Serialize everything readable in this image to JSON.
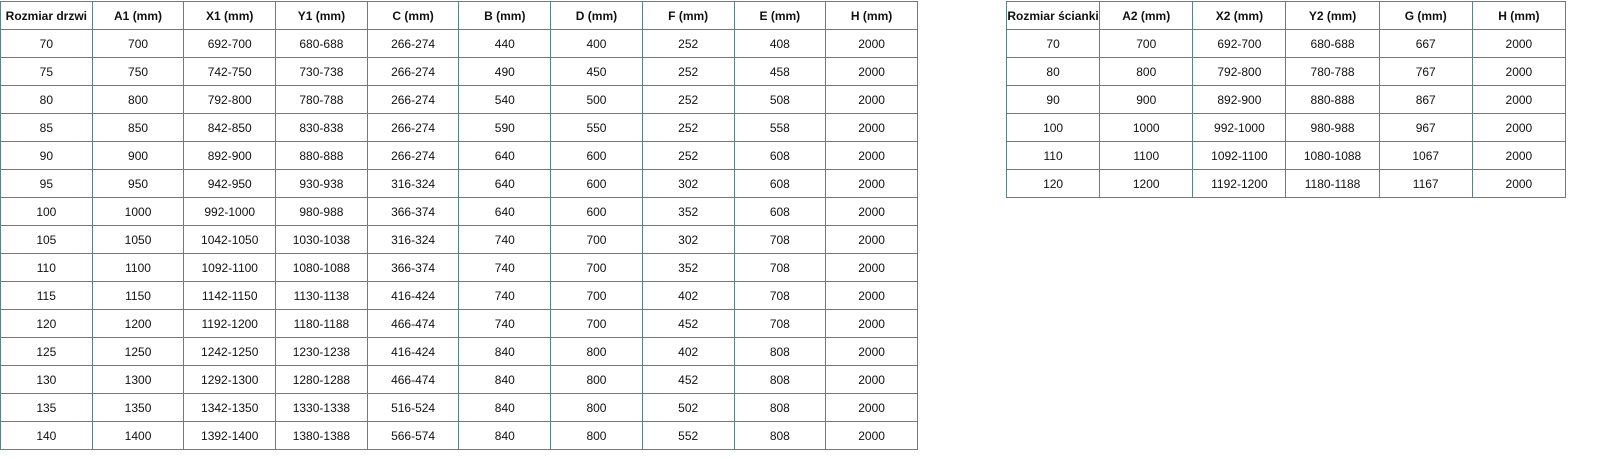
{
  "doors_table": {
    "headers": [
      "Rozmiar drzwi",
      "A1 (mm)",
      "X1 (mm)",
      "Y1 (mm)",
      "C (mm)",
      "B (mm)",
      "D (mm)",
      "F (mm)",
      "E (mm)",
      "H (mm)"
    ],
    "rows": [
      [
        "70",
        "700",
        "692-700",
        "680-688",
        "266-274",
        "440",
        "400",
        "252",
        "408",
        "2000"
      ],
      [
        "75",
        "750",
        "742-750",
        "730-738",
        "266-274",
        "490",
        "450",
        "252",
        "458",
        "2000"
      ],
      [
        "80",
        "800",
        "792-800",
        "780-788",
        "266-274",
        "540",
        "500",
        "252",
        "508",
        "2000"
      ],
      [
        "85",
        "850",
        "842-850",
        "830-838",
        "266-274",
        "590",
        "550",
        "252",
        "558",
        "2000"
      ],
      [
        "90",
        "900",
        "892-900",
        "880-888",
        "266-274",
        "640",
        "600",
        "252",
        "608",
        "2000"
      ],
      [
        "95",
        "950",
        "942-950",
        "930-938",
        "316-324",
        "640",
        "600",
        "302",
        "608",
        "2000"
      ],
      [
        "100",
        "1000",
        "992-1000",
        "980-988",
        "366-374",
        "640",
        "600",
        "352",
        "608",
        "2000"
      ],
      [
        "105",
        "1050",
        "1042-1050",
        "1030-1038",
        "316-324",
        "740",
        "700",
        "302",
        "708",
        "2000"
      ],
      [
        "110",
        "1100",
        "1092-1100",
        "1080-1088",
        "366-374",
        "740",
        "700",
        "352",
        "708",
        "2000"
      ],
      [
        "115",
        "1150",
        "1142-1150",
        "1130-1138",
        "416-424",
        "740",
        "700",
        "402",
        "708",
        "2000"
      ],
      [
        "120",
        "1200",
        "1192-1200",
        "1180-1188",
        "466-474",
        "740",
        "700",
        "452",
        "708",
        "2000"
      ],
      [
        "125",
        "1250",
        "1242-1250",
        "1230-1238",
        "416-424",
        "840",
        "800",
        "402",
        "808",
        "2000"
      ],
      [
        "130",
        "1300",
        "1292-1300",
        "1280-1288",
        "466-474",
        "840",
        "800",
        "452",
        "808",
        "2000"
      ],
      [
        "135",
        "1350",
        "1342-1350",
        "1330-1338",
        "516-524",
        "840",
        "800",
        "502",
        "808",
        "2000"
      ],
      [
        "140",
        "1400",
        "1392-1400",
        "1380-1388",
        "566-574",
        "840",
        "800",
        "552",
        "808",
        "2000"
      ]
    ]
  },
  "wall_table": {
    "headers": [
      "Rozmiar ścianki",
      "A2 (mm)",
      "X2 (mm)",
      "Y2 (mm)",
      "G (mm)",
      "H (mm)"
    ],
    "rows": [
      [
        "70",
        "700",
        "692-700",
        "680-688",
        "667",
        "2000"
      ],
      [
        "80",
        "800",
        "792-800",
        "780-788",
        "767",
        "2000"
      ],
      [
        "90",
        "900",
        "892-900",
        "880-888",
        "867",
        "2000"
      ],
      [
        "100",
        "1000",
        "992-1000",
        "980-988",
        "967",
        "2000"
      ],
      [
        "110",
        "1100",
        "1092-1100",
        "1080-1088",
        "1067",
        "2000"
      ],
      [
        "120",
        "1200",
        "1192-1200",
        "1180-1188",
        "1167",
        "2000"
      ]
    ]
  }
}
